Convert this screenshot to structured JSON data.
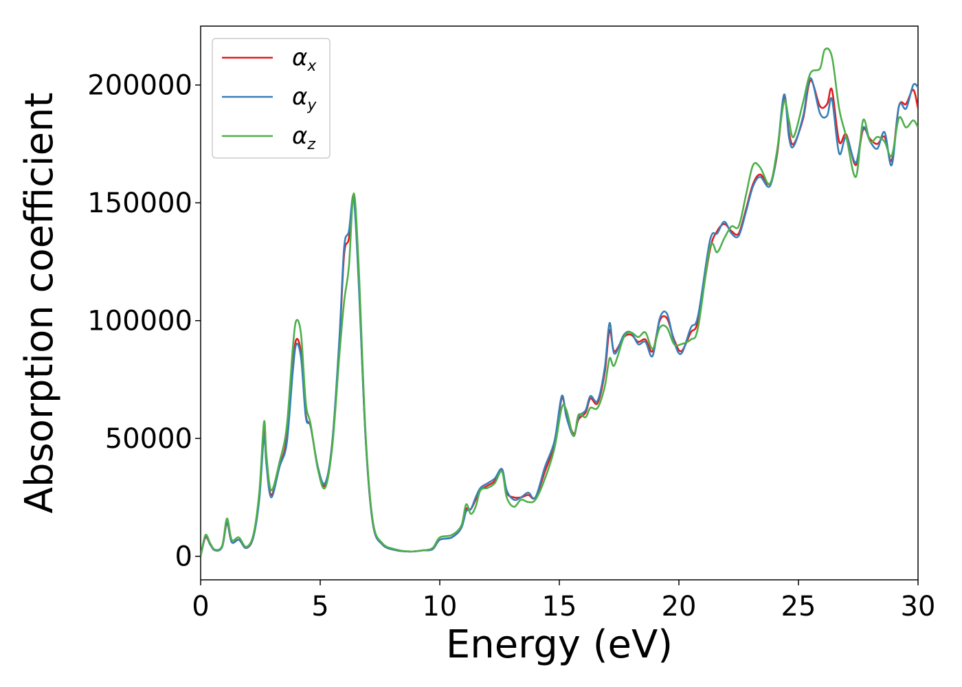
{
  "chart_data": {
    "type": "line",
    "title": "",
    "xlabel": "Energy (eV)",
    "ylabel": "Absorption coefficient",
    "xlim": [
      0,
      30
    ],
    "ylim": [
      -10000,
      225000
    ],
    "x_ticks": [
      0,
      5,
      10,
      15,
      20,
      25,
      30
    ],
    "y_ticks": [
      0,
      50000,
      100000,
      150000,
      200000
    ],
    "grid": false,
    "legend_position": "top-left",
    "series": [
      {
        "name": "α",
        "name_sub": "x",
        "color": "#e41a1c",
        "points": [
          [
            0,
            0
          ],
          [
            0.2,
            8000
          ],
          [
            0.4,
            5000
          ],
          [
            0.6,
            2500
          ],
          [
            0.9,
            4000
          ],
          [
            1.1,
            14000
          ],
          [
            1.3,
            6000
          ],
          [
            1.6,
            7000
          ],
          [
            1.9,
            3500
          ],
          [
            2.2,
            8000
          ],
          [
            2.45,
            25000
          ],
          [
            2.65,
            53000
          ],
          [
            2.75,
            40000
          ],
          [
            2.95,
            26000
          ],
          [
            3.3,
            38000
          ],
          [
            3.6,
            50000
          ],
          [
            3.85,
            80000
          ],
          [
            4.0,
            92000
          ],
          [
            4.2,
            86000
          ],
          [
            4.4,
            60000
          ],
          [
            4.6,
            55000
          ],
          [
            4.9,
            38000
          ],
          [
            5.2,
            30000
          ],
          [
            5.5,
            48000
          ],
          [
            5.8,
            90000
          ],
          [
            6.0,
            128000
          ],
          [
            6.2,
            135000
          ],
          [
            6.4,
            153000
          ],
          [
            6.6,
            120000
          ],
          [
            6.9,
            50000
          ],
          [
            7.2,
            14000
          ],
          [
            7.6,
            5000
          ],
          [
            8.2,
            2500
          ],
          [
            8.8,
            2000
          ],
          [
            9.3,
            2500
          ],
          [
            9.7,
            3000
          ],
          [
            10.0,
            7000
          ],
          [
            10.5,
            8000
          ],
          [
            10.9,
            12000
          ],
          [
            11.1,
            20000
          ],
          [
            11.3,
            20000
          ],
          [
            11.5,
            24000
          ],
          [
            11.7,
            28000
          ],
          [
            12.0,
            30000
          ],
          [
            12.3,
            32000
          ],
          [
            12.6,
            37000
          ],
          [
            12.8,
            27000
          ],
          [
            13.1,
            25000
          ],
          [
            13.4,
            25000
          ],
          [
            13.7,
            26000
          ],
          [
            14.0,
            25000
          ],
          [
            14.4,
            36000
          ],
          [
            14.8,
            48000
          ],
          [
            15.1,
            67000
          ],
          [
            15.3,
            60000
          ],
          [
            15.6,
            52000
          ],
          [
            15.8,
            58000
          ],
          [
            16.1,
            61000
          ],
          [
            16.3,
            67000
          ],
          [
            16.6,
            65000
          ],
          [
            16.9,
            78000
          ],
          [
            17.1,
            96000
          ],
          [
            17.3,
            87000
          ],
          [
            17.7,
            93000
          ],
          [
            18.0,
            94000
          ],
          [
            18.3,
            91000
          ],
          [
            18.6,
            92000
          ],
          [
            18.9,
            87000
          ],
          [
            19.2,
            100000
          ],
          [
            19.5,
            101000
          ],
          [
            19.8,
            92000
          ],
          [
            20.1,
            87000
          ],
          [
            20.5,
            95000
          ],
          [
            20.8,
            100000
          ],
          [
            21.3,
            130000
          ],
          [
            21.6,
            138000
          ],
          [
            21.9,
            141000
          ],
          [
            22.2,
            138000
          ],
          [
            22.5,
            137000
          ],
          [
            22.8,
            147000
          ],
          [
            23.1,
            158000
          ],
          [
            23.4,
            162000
          ],
          [
            23.8,
            158000
          ],
          [
            24.1,
            170000
          ],
          [
            24.4,
            195000
          ],
          [
            24.6,
            180000
          ],
          [
            24.8,
            175000
          ],
          [
            25.2,
            186000
          ],
          [
            25.5,
            202000
          ],
          [
            25.9,
            191000
          ],
          [
            26.2,
            192000
          ],
          [
            26.4,
            198000
          ],
          [
            26.7,
            176000
          ],
          [
            27.0,
            179000
          ],
          [
            27.4,
            166000
          ],
          [
            27.7,
            181000
          ],
          [
            28.0,
            177000
          ],
          [
            28.3,
            175000
          ],
          [
            28.6,
            178000
          ],
          [
            28.9,
            168000
          ],
          [
            29.2,
            191000
          ],
          [
            29.5,
            192000
          ],
          [
            29.8,
            198000
          ],
          [
            30.0,
            190000
          ]
        ]
      },
      {
        "name": "α",
        "name_sub": "y",
        "color": "#377eb8",
        "points": [
          [
            0,
            0
          ],
          [
            0.2,
            8500
          ],
          [
            0.4,
            5000
          ],
          [
            0.6,
            2500
          ],
          [
            0.9,
            4000
          ],
          [
            1.1,
            14500
          ],
          [
            1.3,
            6000
          ],
          [
            1.6,
            7000
          ],
          [
            1.9,
            3500
          ],
          [
            2.2,
            8000
          ],
          [
            2.45,
            24000
          ],
          [
            2.65,
            51000
          ],
          [
            2.75,
            39000
          ],
          [
            2.95,
            25000
          ],
          [
            3.3,
            38000
          ],
          [
            3.6,
            48000
          ],
          [
            3.85,
            78000
          ],
          [
            4.0,
            90000
          ],
          [
            4.2,
            84000
          ],
          [
            4.4,
            59000
          ],
          [
            4.6,
            55000
          ],
          [
            4.9,
            38000
          ],
          [
            5.2,
            31000
          ],
          [
            5.5,
            48000
          ],
          [
            5.8,
            92000
          ],
          [
            6.0,
            131000
          ],
          [
            6.2,
            138000
          ],
          [
            6.4,
            152000
          ],
          [
            6.6,
            118000
          ],
          [
            6.9,
            50000
          ],
          [
            7.2,
            14000
          ],
          [
            7.6,
            5000
          ],
          [
            8.2,
            2500
          ],
          [
            8.8,
            2000
          ],
          [
            9.3,
            2500
          ],
          [
            9.7,
            3000
          ],
          [
            10.0,
            7000
          ],
          [
            10.5,
            8000
          ],
          [
            10.9,
            12000
          ],
          [
            11.1,
            19000
          ],
          [
            11.3,
            20000
          ],
          [
            11.5,
            25000
          ],
          [
            11.7,
            29000
          ],
          [
            12.0,
            31000
          ],
          [
            12.3,
            33000
          ],
          [
            12.6,
            37000
          ],
          [
            12.8,
            28000
          ],
          [
            13.1,
            24000
          ],
          [
            13.4,
            25000
          ],
          [
            13.7,
            27000
          ],
          [
            14.0,
            25000
          ],
          [
            14.4,
            38000
          ],
          [
            14.8,
            49000
          ],
          [
            15.1,
            68000
          ],
          [
            15.3,
            59000
          ],
          [
            15.6,
            51000
          ],
          [
            15.8,
            59000
          ],
          [
            16.1,
            62000
          ],
          [
            16.3,
            68000
          ],
          [
            16.6,
            66000
          ],
          [
            16.9,
            80000
          ],
          [
            17.1,
            99000
          ],
          [
            17.3,
            86000
          ],
          [
            17.7,
            94000
          ],
          [
            18.0,
            95000
          ],
          [
            18.3,
            90000
          ],
          [
            18.6,
            91000
          ],
          [
            18.9,
            85000
          ],
          [
            19.2,
            101000
          ],
          [
            19.5,
            103000
          ],
          [
            19.8,
            91000
          ],
          [
            20.1,
            86000
          ],
          [
            20.5,
            97000
          ],
          [
            20.8,
            102000
          ],
          [
            21.3,
            134000
          ],
          [
            21.6,
            137000
          ],
          [
            21.9,
            142000
          ],
          [
            22.2,
            137000
          ],
          [
            22.5,
            136000
          ],
          [
            22.8,
            146000
          ],
          [
            23.1,
            157000
          ],
          [
            23.4,
            161000
          ],
          [
            23.8,
            157000
          ],
          [
            24.1,
            171000
          ],
          [
            24.4,
            196000
          ],
          [
            24.6,
            178000
          ],
          [
            24.8,
            174000
          ],
          [
            25.2,
            187000
          ],
          [
            25.5,
            203000
          ],
          [
            25.9,
            188000
          ],
          [
            26.2,
            187000
          ],
          [
            26.4,
            194000
          ],
          [
            26.7,
            171000
          ],
          [
            27.0,
            178000
          ],
          [
            27.4,
            167000
          ],
          [
            27.7,
            182000
          ],
          [
            28.0,
            176000
          ],
          [
            28.3,
            173000
          ],
          [
            28.6,
            180000
          ],
          [
            28.9,
            166000
          ],
          [
            29.2,
            191000
          ],
          [
            29.5,
            190000
          ],
          [
            29.8,
            200000
          ],
          [
            30.0,
            199000
          ]
        ]
      },
      {
        "name": "α",
        "name_sub": "z",
        "color": "#4daf4a",
        "points": [
          [
            0,
            0
          ],
          [
            0.2,
            9000
          ],
          [
            0.4,
            5500
          ],
          [
            0.6,
            2800
          ],
          [
            0.9,
            4500
          ],
          [
            1.1,
            16000
          ],
          [
            1.3,
            7000
          ],
          [
            1.6,
            8000
          ],
          [
            1.9,
            4000
          ],
          [
            2.2,
            9000
          ],
          [
            2.45,
            27000
          ],
          [
            2.65,
            57000
          ],
          [
            2.75,
            43000
          ],
          [
            2.95,
            28000
          ],
          [
            3.3,
            40000
          ],
          [
            3.6,
            55000
          ],
          [
            3.85,
            88000
          ],
          [
            4.0,
            100000
          ],
          [
            4.2,
            94000
          ],
          [
            4.4,
            65000
          ],
          [
            4.6,
            56000
          ],
          [
            4.9,
            37000
          ],
          [
            5.2,
            29000
          ],
          [
            5.5,
            46000
          ],
          [
            5.8,
            85000
          ],
          [
            6.0,
            108000
          ],
          [
            6.2,
            123000
          ],
          [
            6.4,
            154000
          ],
          [
            6.6,
            125000
          ],
          [
            6.9,
            52000
          ],
          [
            7.2,
            15000
          ],
          [
            7.6,
            5500
          ],
          [
            8.2,
            2800
          ],
          [
            8.8,
            2000
          ],
          [
            9.3,
            2500
          ],
          [
            9.7,
            3500
          ],
          [
            10.0,
            8000
          ],
          [
            10.5,
            9000
          ],
          [
            10.9,
            13000
          ],
          [
            11.1,
            22000
          ],
          [
            11.3,
            18000
          ],
          [
            11.5,
            21000
          ],
          [
            11.7,
            28000
          ],
          [
            12.0,
            29000
          ],
          [
            12.3,
            31000
          ],
          [
            12.6,
            36000
          ],
          [
            12.8,
            25000
          ],
          [
            13.1,
            21000
          ],
          [
            13.4,
            24000
          ],
          [
            13.7,
            23000
          ],
          [
            14.0,
            24000
          ],
          [
            14.4,
            33000
          ],
          [
            14.8,
            46000
          ],
          [
            15.1,
            63000
          ],
          [
            15.3,
            62000
          ],
          [
            15.6,
            51000
          ],
          [
            15.8,
            60000
          ],
          [
            16.1,
            59000
          ],
          [
            16.3,
            63000
          ],
          [
            16.6,
            63000
          ],
          [
            16.9,
            72000
          ],
          [
            17.1,
            84000
          ],
          [
            17.3,
            81000
          ],
          [
            17.7,
            93000
          ],
          [
            18.0,
            95000
          ],
          [
            18.3,
            93000
          ],
          [
            18.6,
            95000
          ],
          [
            18.9,
            88000
          ],
          [
            19.2,
            97000
          ],
          [
            19.5,
            97000
          ],
          [
            19.8,
            90000
          ],
          [
            20.1,
            90000
          ],
          [
            20.5,
            92000
          ],
          [
            20.8,
            97000
          ],
          [
            21.3,
            131000
          ],
          [
            21.6,
            129000
          ],
          [
            21.9,
            135000
          ],
          [
            22.2,
            140000
          ],
          [
            22.5,
            140000
          ],
          [
            22.8,
            153000
          ],
          [
            23.1,
            166000
          ],
          [
            23.4,
            165000
          ],
          [
            23.8,
            158000
          ],
          [
            24.1,
            172000
          ],
          [
            24.4,
            193000
          ],
          [
            24.6,
            185000
          ],
          [
            24.8,
            178000
          ],
          [
            25.2,
            193000
          ],
          [
            25.5,
            205000
          ],
          [
            25.9,
            207000
          ],
          [
            26.1,
            215000
          ],
          [
            26.4,
            212000
          ],
          [
            26.7,
            190000
          ],
          [
            27.0,
            178000
          ],
          [
            27.4,
            161000
          ],
          [
            27.7,
            185000
          ],
          [
            28.0,
            176000
          ],
          [
            28.3,
            178000
          ],
          [
            28.6,
            176000
          ],
          [
            28.9,
            170000
          ],
          [
            29.2,
            186000
          ],
          [
            29.5,
            182000
          ],
          [
            29.8,
            185000
          ],
          [
            30.0,
            182000
          ]
        ]
      }
    ]
  }
}
